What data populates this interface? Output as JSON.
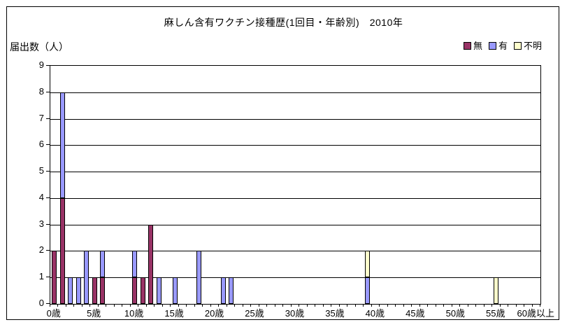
{
  "chart": {
    "title": "麻しん含有ワクチン接種歴(1回目・年齢別)　2010年",
    "y_axis_title": "届出数（人）",
    "legend": [
      {
        "label": "無",
        "color": "#993366"
      },
      {
        "label": "有",
        "color": "#9999FF"
      },
      {
        "label": "不明",
        "color": "#FFFFCC"
      }
    ]
  },
  "chart_data": {
    "type": "bar",
    "stacked": true,
    "title": "麻しん含有ワクチン接種歴(1回目・年齢別)　2010年",
    "ylabel": "届出数（人）",
    "xlabel": "",
    "ylim": [
      0,
      9
    ],
    "y_tick_interval": 1,
    "grid": true,
    "legend_position": "top-right",
    "n_categories": 61,
    "categories_note": "ages 0歳 through 59歳 in 1-year steps, last category is 60歳以上",
    "x_tick_labels": [
      "0歳",
      "5歳",
      "10歳",
      "15歳",
      "20歳",
      "25歳",
      "30歳",
      "35歳",
      "40歳",
      "45歳",
      "50歳",
      "55歳",
      "60歳以上"
    ],
    "x_tick_positions": [
      0,
      5,
      10,
      15,
      20,
      25,
      30,
      35,
      40,
      45,
      50,
      55,
      60
    ],
    "series": [
      {
        "name": "無",
        "color": "#993366",
        "values": [
          2,
          4,
          0,
          0,
          0,
          1,
          1,
          0,
          0,
          0,
          1,
          1,
          3,
          0,
          0,
          0,
          0,
          0,
          0,
          0,
          0,
          0,
          0,
          0,
          0,
          0,
          0,
          0,
          0,
          0,
          0,
          0,
          0,
          0,
          0,
          0,
          0,
          0,
          0,
          0,
          0,
          0,
          0,
          0,
          0,
          0,
          0,
          0,
          0,
          0,
          0,
          0,
          0,
          0,
          0,
          0,
          0,
          0,
          0,
          0,
          0
        ]
      },
      {
        "name": "有",
        "color": "#9999FF",
        "values": [
          0,
          4,
          1,
          1,
          2,
          0,
          1,
          0,
          0,
          0,
          1,
          0,
          0,
          1,
          0,
          1,
          0,
          0,
          2,
          0,
          0,
          1,
          1,
          0,
          0,
          0,
          0,
          0,
          0,
          0,
          0,
          0,
          0,
          0,
          0,
          0,
          0,
          0,
          0,
          1,
          0,
          0,
          0,
          0,
          0,
          0,
          0,
          0,
          0,
          0,
          0,
          0,
          0,
          0,
          0,
          0,
          0,
          0,
          0,
          0,
          0
        ]
      },
      {
        "name": "不明",
        "color": "#FFFFCC",
        "values": [
          0,
          0,
          0,
          0,
          0,
          0,
          0,
          0,
          0,
          0,
          0,
          0,
          0,
          0,
          0,
          0,
          0,
          0,
          0,
          0,
          0,
          0,
          0,
          0,
          0,
          0,
          0,
          0,
          0,
          0,
          0,
          0,
          0,
          0,
          0,
          0,
          0,
          0,
          0,
          1,
          0,
          0,
          0,
          0,
          0,
          0,
          0,
          0,
          0,
          0,
          0,
          0,
          0,
          0,
          0,
          1,
          0,
          0,
          0,
          0,
          0
        ]
      }
    ],
    "nonzero_summary": {
      "無": {
        "0歳": 2,
        "1歳": 4,
        "5歳": 1,
        "6歳": 1,
        "10歳": 1,
        "11歳": 1,
        "12歳": 3
      },
      "有": {
        "1歳": 4,
        "2歳": 1,
        "3歳": 1,
        "4歳": 2,
        "6歳": 1,
        "10歳": 1,
        "13歳": 1,
        "15歳": 1,
        "18歳": 2,
        "21歳": 1,
        "22歳": 1,
        "39歳": 1
      },
      "不明": {
        "39歳": 1,
        "55歳": 1
      }
    }
  }
}
